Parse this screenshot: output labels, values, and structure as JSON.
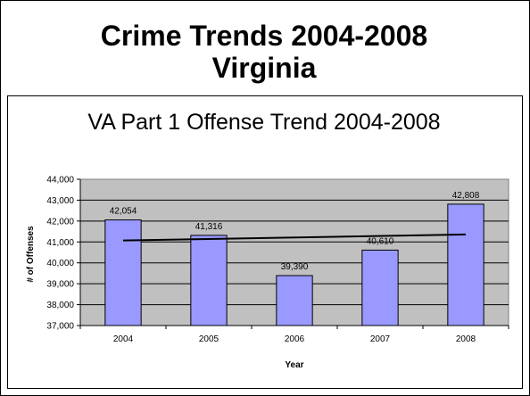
{
  "slide": {
    "title_line1": "Crime Trends 2004-2008",
    "title_line2": "Virginia"
  },
  "chart_data": {
    "type": "bar",
    "title": "VA Part 1 Offense Trend 2004-2008",
    "xlabel": "Year",
    "ylabel": "# of Offenses",
    "categories": [
      "2004",
      "2005",
      "2006",
      "2007",
      "2008"
    ],
    "values": [
      42054,
      41316,
      39390,
      40610,
      42808
    ],
    "value_labels": [
      "42,054",
      "41,316",
      "39,390",
      "40,610",
      "42,808"
    ],
    "ylim": [
      37000,
      44000
    ],
    "yticks": [
      37000,
      38000,
      39000,
      40000,
      41000,
      42000,
      43000,
      44000
    ],
    "ytick_labels": [
      "37,000",
      "38,000",
      "39,000",
      "40,000",
      "41,000",
      "42,000",
      "43,000",
      "44,000"
    ],
    "trendline": {
      "type": "linear",
      "start": 41070,
      "end": 41360
    },
    "grid": true,
    "legend": "none",
    "colors": {
      "bar": "#9999ff",
      "plot_bg": "#c0c0c0",
      "trend": "#000000"
    }
  }
}
